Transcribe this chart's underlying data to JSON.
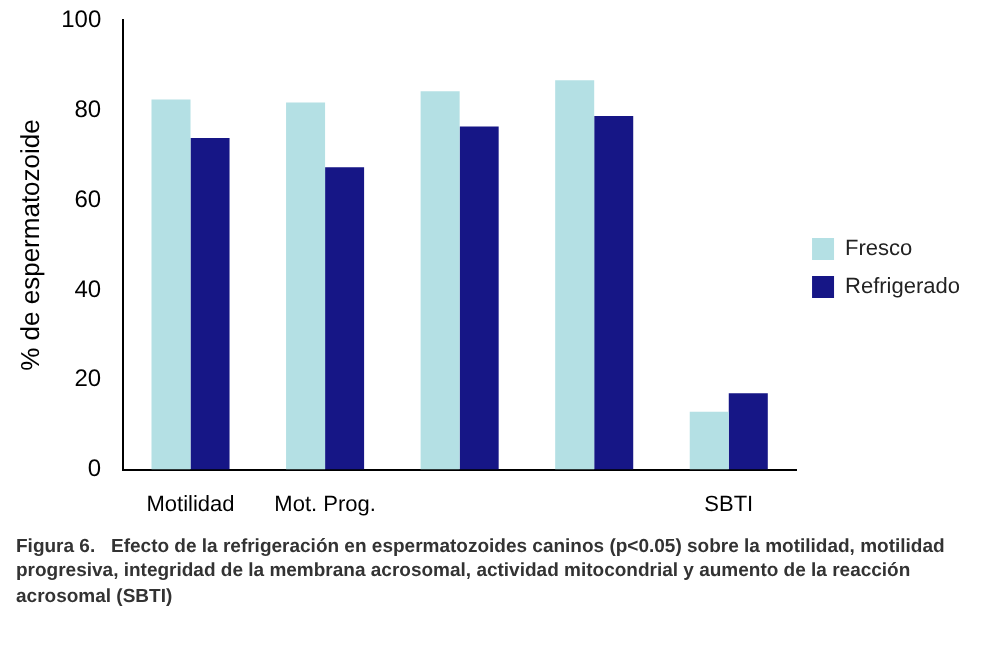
{
  "chart_data": {
    "type": "bar",
    "ylabel": "% de espermatozoide",
    "categories": [
      "Motilidad",
      "Mot. Prog.",
      null,
      null,
      "SBTI"
    ],
    "series": [
      {
        "name": "Fresco",
        "color": "#b4e0e4",
        "values": [
          82.4,
          81.7,
          84.2,
          86.7,
          12.9
        ]
      },
      {
        "name": "Refrigerado",
        "color": "#161686",
        "values": [
          73.8,
          67.3,
          76.4,
          78.7,
          17.0
        ]
      }
    ],
    "ylim": [
      0,
      100
    ],
    "yticks": [
      0,
      20,
      40,
      60,
      80,
      100
    ],
    "grid": false,
    "legend": "right",
    "annotations": [
      "Figura 6.   Efecto de la refrigeración en espermatozoides caninos (p<0.05) sobre la motilidad, motilidad progresiva, integridad de la membrana acrosomal, actividad mitocondrial y aumento de la reacción acrosomal (SBTI)"
    ]
  }
}
